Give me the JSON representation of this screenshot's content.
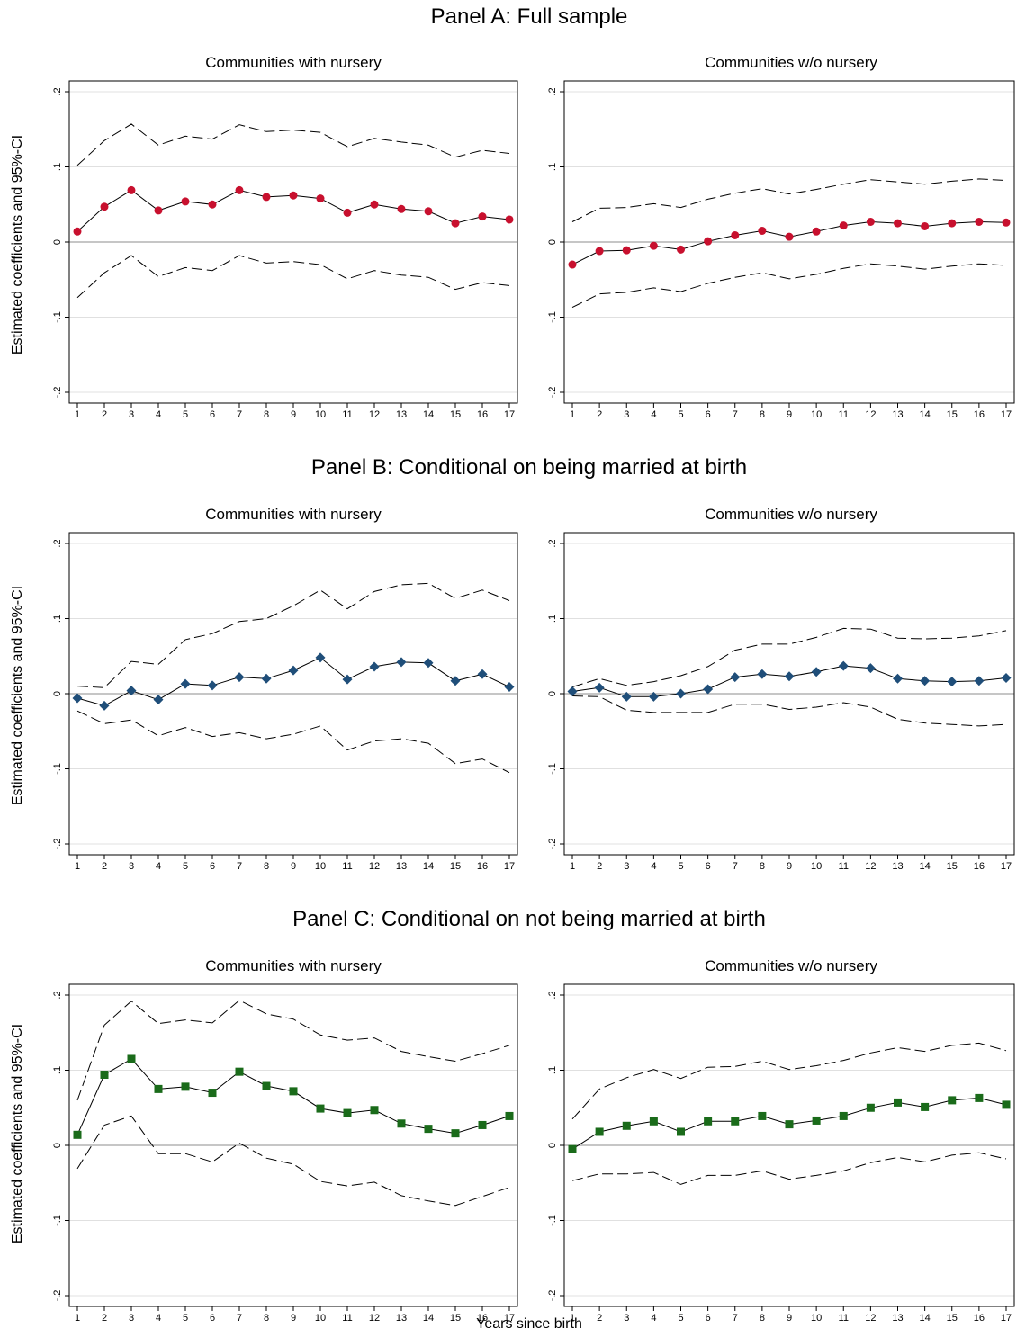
{
  "figure": {
    "xlabel": "Years since birth",
    "ylabel": "Estimated coefficients and 95%-CI",
    "colors": {
      "ci": "#000000",
      "zero": "#8c8c8c",
      "grid": "#e0e0e0"
    }
  },
  "chart_data": [
    {
      "panel_title": "Panel A: Full sample",
      "marker": "circle",
      "color": "#c8102e",
      "ylim": [
        -0.2,
        0.2
      ],
      "yticks": [
        "-.2",
        "-.1",
        "0",
        ".1",
        ".2"
      ],
      "x": [
        1,
        2,
        3,
        4,
        5,
        6,
        7,
        8,
        9,
        10,
        11,
        12,
        13,
        14,
        15,
        16,
        17
      ],
      "charts": [
        {
          "type": "line",
          "title": "Communities with nursery",
          "estimate": [
            0.014,
            0.047,
            0.069,
            0.042,
            0.054,
            0.05,
            0.069,
            0.06,
            0.062,
            0.058,
            0.039,
            0.05,
            0.044,
            0.041,
            0.025,
            0.034,
            0.03
          ],
          "ci_upper": [
            0.102,
            0.135,
            0.157,
            0.129,
            0.141,
            0.137,
            0.156,
            0.147,
            0.149,
            0.146,
            0.127,
            0.138,
            0.133,
            0.129,
            0.113,
            0.122,
            0.118
          ],
          "ci_lower": [
            -0.074,
            -0.041,
            -0.018,
            -0.046,
            -0.034,
            -0.038,
            -0.018,
            -0.028,
            -0.026,
            -0.03,
            -0.049,
            -0.038,
            -0.044,
            -0.047,
            -0.063,
            -0.054,
            -0.058
          ]
        },
        {
          "type": "line",
          "title": "Communities w/o nursery",
          "estimate": [
            -0.03,
            -0.012,
            -0.011,
            -0.005,
            -0.01,
            0.001,
            0.009,
            0.015,
            0.007,
            0.014,
            0.022,
            0.027,
            0.025,
            0.021,
            0.025,
            0.027,
            0.026
          ],
          "ci_upper": [
            0.027,
            0.045,
            0.046,
            0.051,
            0.046,
            0.057,
            0.065,
            0.071,
            0.064,
            0.07,
            0.077,
            0.083,
            0.08,
            0.077,
            0.081,
            0.084,
            0.082
          ],
          "ci_lower": [
            -0.087,
            -0.069,
            -0.067,
            -0.061,
            -0.066,
            -0.055,
            -0.047,
            -0.041,
            -0.049,
            -0.043,
            -0.035,
            -0.029,
            -0.032,
            -0.036,
            -0.032,
            -0.029,
            -0.031
          ]
        }
      ]
    },
    {
      "panel_title": "Panel B: Conditional on being married at birth",
      "marker": "diamond",
      "color": "#1f4e79",
      "ylim": [
        -0.2,
        0.2
      ],
      "yticks": [
        "-.2",
        "-.1",
        "0",
        ".1",
        ".2"
      ],
      "x": [
        1,
        2,
        3,
        4,
        5,
        6,
        7,
        8,
        9,
        10,
        11,
        12,
        13,
        14,
        15,
        16,
        17
      ],
      "charts": [
        {
          "type": "line",
          "title": "Communities with nursery",
          "estimate": [
            -0.006,
            -0.016,
            0.004,
            -0.008,
            0.013,
            0.011,
            0.022,
            0.02,
            0.031,
            0.048,
            0.019,
            0.036,
            0.042,
            0.041,
            0.017,
            0.026,
            0.009
          ],
          "ci_upper": [
            0.01,
            0.008,
            0.043,
            0.039,
            0.072,
            0.08,
            0.096,
            0.1,
            0.117,
            0.138,
            0.113,
            0.136,
            0.145,
            0.147,
            0.127,
            0.138,
            0.124
          ],
          "ci_lower": [
            -0.023,
            -0.04,
            -0.035,
            -0.056,
            -0.045,
            -0.057,
            -0.052,
            -0.06,
            -0.054,
            -0.043,
            -0.075,
            -0.063,
            -0.06,
            -0.066,
            -0.093,
            -0.087,
            -0.105
          ]
        },
        {
          "type": "line",
          "title": "Communities w/o nursery",
          "estimate": [
            0.003,
            0.008,
            -0.004,
            -0.004,
            0.0,
            0.006,
            0.022,
            0.026,
            0.023,
            0.029,
            0.037,
            0.034,
            0.02,
            0.017,
            0.016,
            0.017,
            0.021
          ],
          "ci_upper": [
            0.009,
            0.02,
            0.011,
            0.016,
            0.024,
            0.036,
            0.058,
            0.066,
            0.066,
            0.075,
            0.087,
            0.086,
            0.074,
            0.073,
            0.074,
            0.077,
            0.084
          ],
          "ci_lower": [
            -0.003,
            -0.004,
            -0.022,
            -0.025,
            -0.025,
            -0.025,
            -0.014,
            -0.014,
            -0.021,
            -0.018,
            -0.012,
            -0.018,
            -0.034,
            -0.039,
            -0.041,
            -0.043,
            -0.041
          ]
        }
      ]
    },
    {
      "panel_title": "Panel C: Conditional on not being married at birth",
      "marker": "square",
      "color": "#1a6b1a",
      "ylim": [
        -0.2,
        0.2
      ],
      "yticks": [
        "-.2",
        "-.1",
        "0",
        ".1",
        ".2"
      ],
      "x": [
        1,
        2,
        3,
        4,
        5,
        6,
        7,
        8,
        9,
        10,
        11,
        12,
        13,
        14,
        15,
        16,
        17
      ],
      "charts": [
        {
          "type": "line",
          "title": "Communities with nursery",
          "estimate": [
            0.014,
            0.094,
            0.115,
            0.075,
            0.078,
            0.07,
            0.098,
            0.079,
            0.072,
            0.049,
            0.043,
            0.047,
            0.029,
            0.022,
            0.016,
            0.027,
            0.039
          ],
          "ci_upper": [
            0.06,
            0.16,
            0.192,
            0.162,
            0.167,
            0.163,
            0.193,
            0.175,
            0.168,
            0.147,
            0.14,
            0.143,
            0.125,
            0.118,
            0.112,
            0.122,
            0.133
          ],
          "ci_lower": [
            -0.031,
            0.027,
            0.039,
            -0.011,
            -0.011,
            -0.022,
            0.003,
            -0.017,
            -0.025,
            -0.048,
            -0.054,
            -0.049,
            -0.067,
            -0.074,
            -0.08,
            -0.068,
            -0.056
          ]
        },
        {
          "type": "line",
          "title": "Communities w/o nursery",
          "estimate": [
            -0.005,
            0.018,
            0.026,
            0.032,
            0.018,
            0.032,
            0.032,
            0.039,
            0.028,
            0.033,
            0.039,
            0.05,
            0.057,
            0.051,
            0.06,
            0.063,
            0.054
          ],
          "ci_upper": [
            0.035,
            0.075,
            0.09,
            0.101,
            0.089,
            0.104,
            0.105,
            0.112,
            0.101,
            0.106,
            0.113,
            0.123,
            0.13,
            0.125,
            0.133,
            0.136,
            0.126
          ],
          "ci_lower": [
            -0.047,
            -0.038,
            -0.038,
            -0.036,
            -0.052,
            -0.04,
            -0.04,
            -0.034,
            -0.045,
            -0.04,
            -0.034,
            -0.023,
            -0.016,
            -0.022,
            -0.013,
            -0.01,
            -0.018
          ]
        }
      ]
    }
  ]
}
